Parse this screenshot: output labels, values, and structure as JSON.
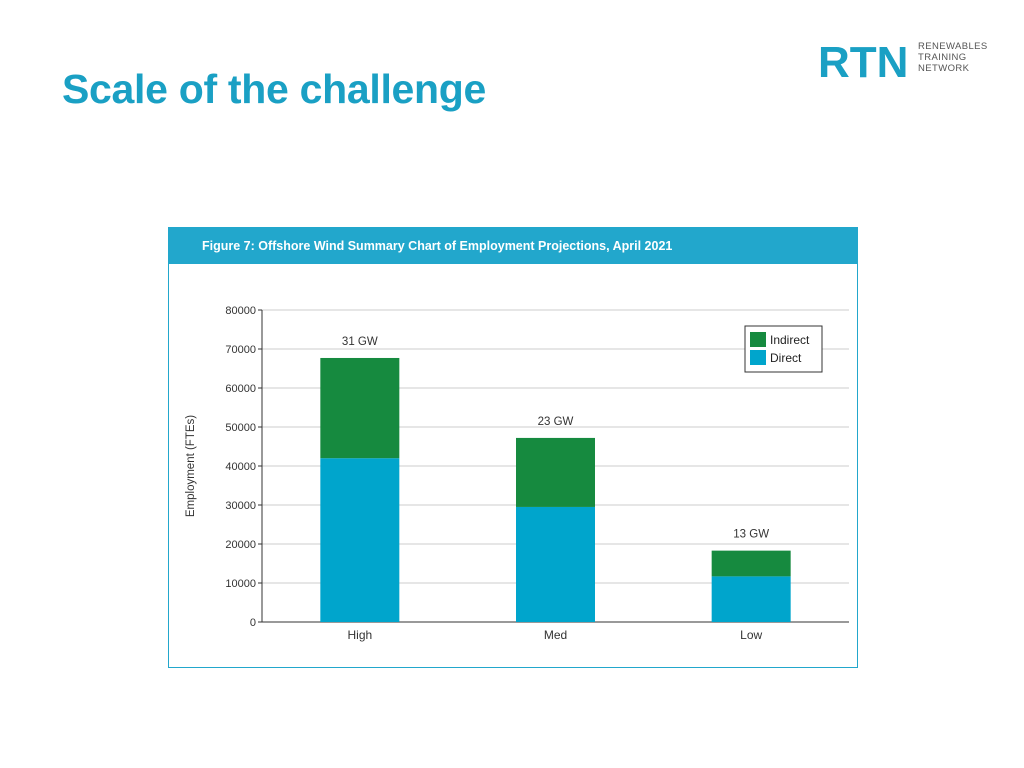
{
  "slide": {
    "title": "Scale of the challenge"
  },
  "logo": {
    "mark_text": "RTN",
    "lines": [
      "RENEWABLES",
      "TRAINING",
      "NETWORK"
    ]
  },
  "colors": {
    "title": "#1aa0c4",
    "accent": "#22a7cc",
    "direct": "#00a5cc",
    "indirect": "#168a3f"
  },
  "chart_data": {
    "type": "bar",
    "stacked": true,
    "title": "Figure 7: Offshore Wind Summary Chart of Employment Projections, April 2021",
    "xlabel": "",
    "ylabel": "Employment (FTEs)",
    "categories": [
      "High",
      "Med",
      "Low"
    ],
    "bar_labels": [
      "31 GW",
      "23 GW",
      "13 GW"
    ],
    "series": [
      {
        "name": "Direct",
        "color": "#00a5cc",
        "values": [
          42000,
          29500,
          11700
        ]
      },
      {
        "name": "Indirect",
        "color": "#168a3f",
        "values": [
          25700,
          17700,
          6600
        ]
      }
    ],
    "ylim": [
      0,
      80000
    ],
    "yticks": [
      0,
      10000,
      20000,
      30000,
      40000,
      50000,
      60000,
      70000,
      80000
    ],
    "grid": true,
    "legend": {
      "position": "top-right",
      "entries": [
        "Indirect",
        "Direct"
      ]
    }
  }
}
